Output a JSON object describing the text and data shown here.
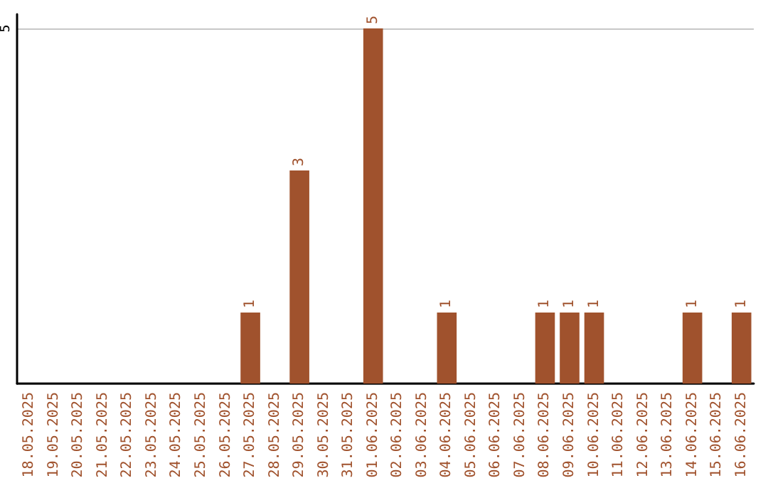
{
  "chart_data": {
    "type": "bar",
    "categories": [
      "18.05.2025",
      "19.05.2025",
      "20.05.2025",
      "21.05.2025",
      "22.05.2025",
      "23.05.2025",
      "24.05.2025",
      "25.05.2025",
      "26.05.2025",
      "27.05.2025",
      "28.05.2025",
      "29.05.2025",
      "30.05.2025",
      "31.05.2025",
      "01.06.2025",
      "02.06.2025",
      "03.06.2025",
      "04.06.2025",
      "05.06.2025",
      "06.06.2025",
      "07.06.2025",
      "08.06.2025",
      "09.06.2025",
      "10.06.2025",
      "11.06.2025",
      "12.06.2025",
      "13.06.2025",
      "14.06.2025",
      "15.06.2025",
      "16.06.2025"
    ],
    "values": [
      0,
      0,
      0,
      0,
      0,
      0,
      0,
      0,
      0,
      1,
      0,
      3,
      0,
      0,
      5,
      0,
      0,
      1,
      0,
      0,
      0,
      1,
      1,
      1,
      0,
      0,
      0,
      1,
      0,
      1
    ],
    "value_labels": [
      null,
      null,
      null,
      null,
      null,
      null,
      null,
      null,
      null,
      "1",
      null,
      "3",
      null,
      null,
      "5",
      null,
      null,
      "1",
      null,
      null,
      null,
      "1",
      "1",
      "1",
      null,
      null,
      null,
      "1",
      null,
      "1"
    ],
    "color": "#a0522d",
    "ylim": [
      0,
      5.2
    ],
    "yticks": [
      5
    ],
    "grid": "y"
  }
}
